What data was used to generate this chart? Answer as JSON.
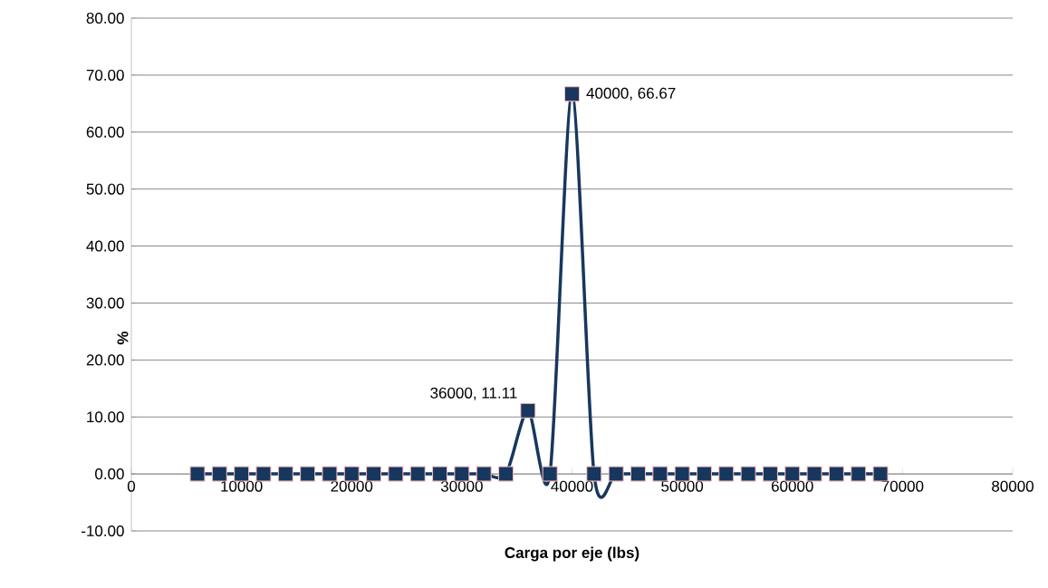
{
  "chart_data": {
    "type": "line",
    "xlabel": "Carga por eje (lbs)",
    "ylabel": "%",
    "x": [
      6000,
      8000,
      10000,
      12000,
      14000,
      16000,
      18000,
      20000,
      22000,
      24000,
      26000,
      28000,
      30000,
      32000,
      34000,
      36000,
      38000,
      40000,
      42000,
      44000,
      46000,
      48000,
      50000,
      52000,
      54000,
      56000,
      58000,
      60000,
      62000,
      64000,
      66000,
      68000
    ],
    "series": [
      {
        "color": "#17375e",
        "values": [
          0,
          0,
          0,
          0,
          0,
          0,
          0,
          0,
          0,
          0,
          0,
          0,
          0,
          0,
          0,
          11.11,
          0,
          66.67,
          0,
          0,
          0,
          0,
          0,
          0,
          0,
          0,
          0,
          0,
          0,
          0,
          0,
          0
        ]
      }
    ],
    "marker": "square",
    "grid": "y",
    "xlim": [
      0,
      80000
    ],
    "xticks": [
      0,
      10000,
      20000,
      30000,
      40000,
      50000,
      60000,
      70000,
      80000
    ],
    "ylim": [
      -10,
      80
    ],
    "yticks": [
      {
        "value": -10,
        "label": "-10.00"
      },
      {
        "value": 0,
        "label": "0.00"
      },
      {
        "value": 10,
        "label": "10.00"
      },
      {
        "value": 20,
        "label": "20.00"
      },
      {
        "value": 30,
        "label": "30.00"
      },
      {
        "value": 40,
        "label": "40.00"
      },
      {
        "value": 50,
        "label": "50.00"
      },
      {
        "value": 60,
        "label": "60.00"
      },
      {
        "value": 70,
        "label": "70.00"
      },
      {
        "value": 80,
        "label": "80.00"
      }
    ],
    "annotations": [
      {
        "text": "36000, 11.11",
        "x": 36000,
        "y": 11.11
      },
      {
        "text": "40000, 66.67",
        "x": 40000,
        "y": 66.67
      }
    ]
  }
}
